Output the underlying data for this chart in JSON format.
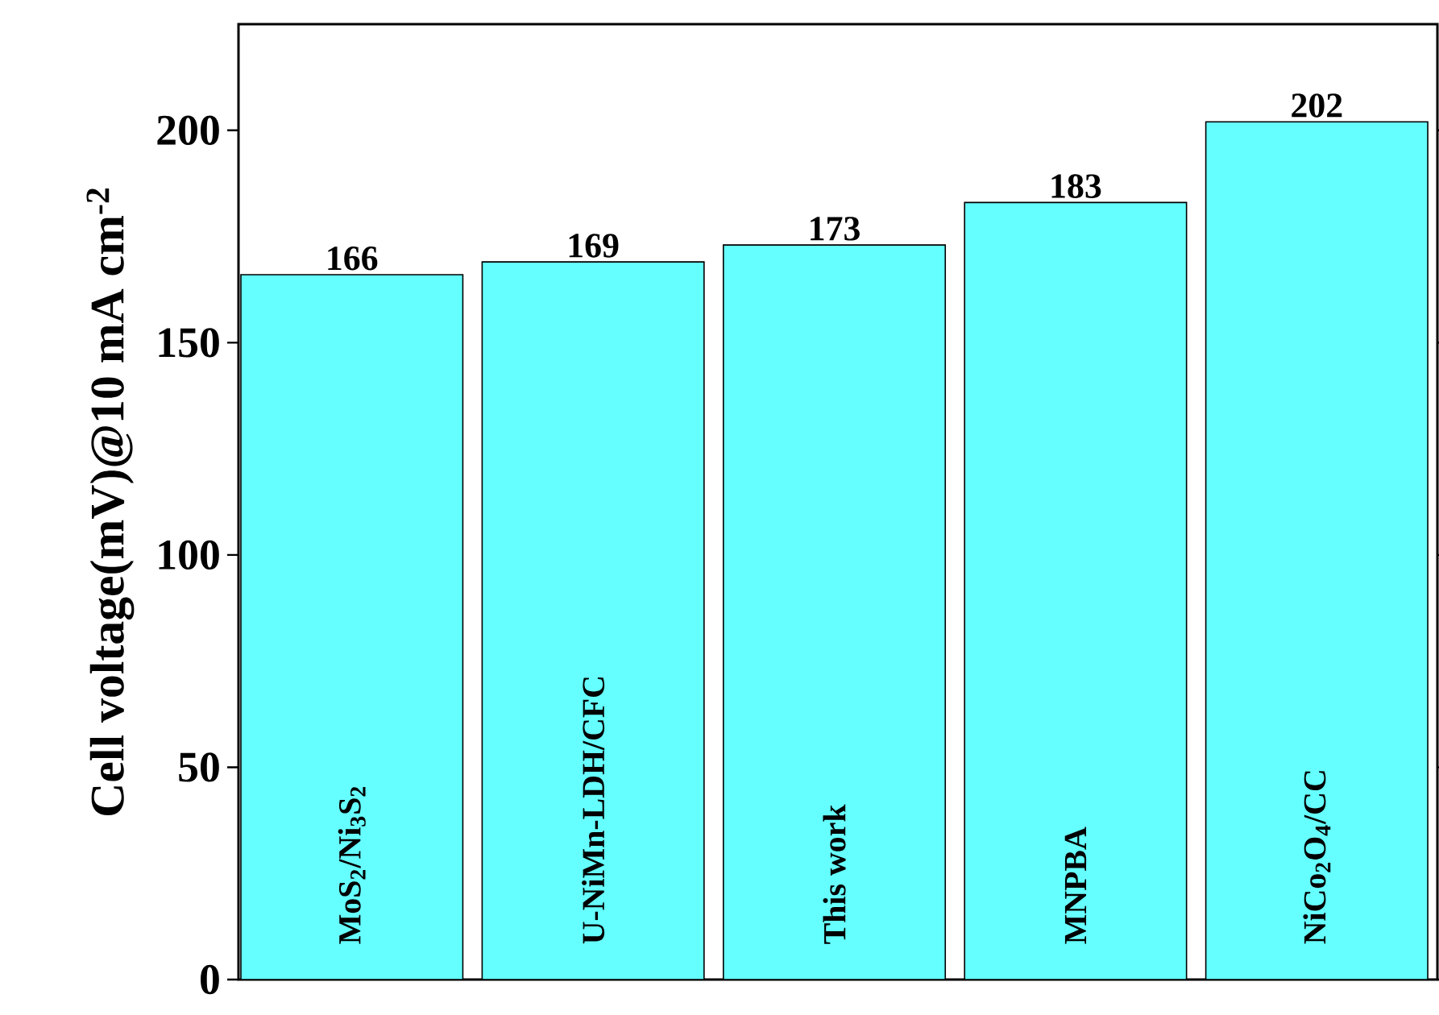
{
  "chart_data": {
    "type": "bar",
    "ylabel": "Cell voltage(mV)@10 mA cm$^{-2}$",
    "categories": [
      "MoS$_{2}$/Ni$_{3}$S$_{2}$",
      "U-NiMn-LDH/CFC",
      "This work",
      "MNPBA",
      "NiCo$_{2}$O$_{4}$/CC"
    ],
    "values": [
      166,
      169,
      173,
      183,
      202
    ],
    "color": "#66ffff",
    "ylim": [
      0,
      225
    ],
    "yticks": [
      0,
      50,
      100,
      150,
      200
    ],
    "data_labels": true,
    "grid": false
  }
}
